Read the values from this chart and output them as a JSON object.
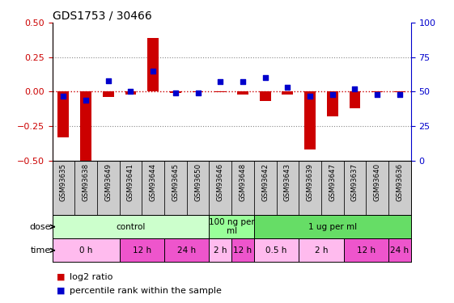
{
  "title": "GDS1753 / 30466",
  "samples": [
    "GSM93635",
    "GSM93638",
    "GSM93649",
    "GSM93641",
    "GSM93644",
    "GSM93645",
    "GSM93650",
    "GSM93646",
    "GSM93648",
    "GSM93642",
    "GSM93643",
    "GSM93639",
    "GSM93647",
    "GSM93637",
    "GSM93640",
    "GSM93636"
  ],
  "log2_ratio": [
    -0.33,
    -0.52,
    -0.04,
    -0.02,
    0.39,
    -0.01,
    -0.005,
    -0.005,
    -0.02,
    -0.07,
    -0.02,
    -0.42,
    -0.18,
    -0.12,
    -0.005,
    -0.005
  ],
  "percentile_rank": [
    47,
    44,
    58,
    50,
    65,
    49,
    49,
    57,
    57,
    60,
    53,
    47,
    48,
    52,
    48,
    48
  ],
  "ylim_left": [
    -0.5,
    0.5
  ],
  "ylim_right": [
    0,
    100
  ],
  "yticks_left": [
    -0.5,
    -0.25,
    0,
    0.25,
    0.5
  ],
  "yticks_right": [
    0,
    25,
    50,
    75,
    100
  ],
  "hlines": [
    0.25,
    -0.25
  ],
  "bar_color": "#cc0000",
  "dot_color": "#0000cc",
  "zero_line_color": "#cc0000",
  "dose_groups": [
    {
      "label": "control",
      "start": 0,
      "end": 7,
      "color": "#ccffcc"
    },
    {
      "label": "100 ng per\nml",
      "start": 7,
      "end": 9,
      "color": "#99ff99"
    },
    {
      "label": "1 ug per ml",
      "start": 9,
      "end": 16,
      "color": "#66dd66"
    }
  ],
  "time_groups": [
    {
      "label": "0 h",
      "start": 0,
      "end": 3,
      "color": "#ffbbee"
    },
    {
      "label": "12 h",
      "start": 3,
      "end": 5,
      "color": "#ee55cc"
    },
    {
      "label": "24 h",
      "start": 5,
      "end": 7,
      "color": "#ee55cc"
    },
    {
      "label": "2 h",
      "start": 7,
      "end": 8,
      "color": "#ffbbee"
    },
    {
      "label": "12 h",
      "start": 8,
      "end": 9,
      "color": "#ee55cc"
    },
    {
      "label": "0.5 h",
      "start": 9,
      "end": 11,
      "color": "#ffbbee"
    },
    {
      "label": "2 h",
      "start": 11,
      "end": 13,
      "color": "#ffbbee"
    },
    {
      "label": "12 h",
      "start": 13,
      "end": 15,
      "color": "#ee55cc"
    },
    {
      "label": "24 h",
      "start": 15,
      "end": 16,
      "color": "#ee55cc"
    }
  ],
  "legend_bar_label": "log2 ratio",
  "legend_dot_label": "percentile rank within the sample",
  "dose_label": "dose",
  "time_label": "time",
  "grid_color": "#888888",
  "background_color": "#ffffff",
  "axis_color_left": "#cc0000",
  "axis_color_right": "#0000cc",
  "bar_width": 0.5,
  "dot_size": 22,
  "label_bg_color": "#cccccc"
}
